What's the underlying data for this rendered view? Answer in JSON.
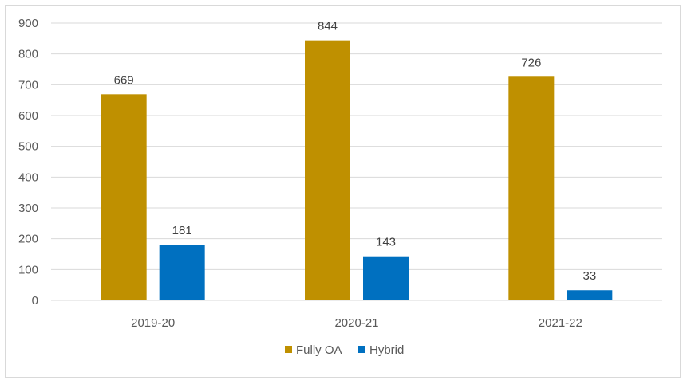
{
  "chart_data": {
    "type": "bar",
    "categories": [
      "2019-20",
      "2020-21",
      "2021-22"
    ],
    "series": [
      {
        "name": "Fully OA",
        "values": [
          669,
          844,
          726
        ],
        "color": "#BF9000"
      },
      {
        "name": "Hybrid",
        "values": [
          181,
          143,
          33
        ],
        "color": "#0070C0"
      }
    ],
    "ylim": [
      0,
      900
    ],
    "y_ticks": [
      0,
      100,
      200,
      300,
      400,
      500,
      600,
      700,
      800,
      900
    ],
    "grid": true,
    "legend_position": "bottom",
    "data_labels": true
  }
}
